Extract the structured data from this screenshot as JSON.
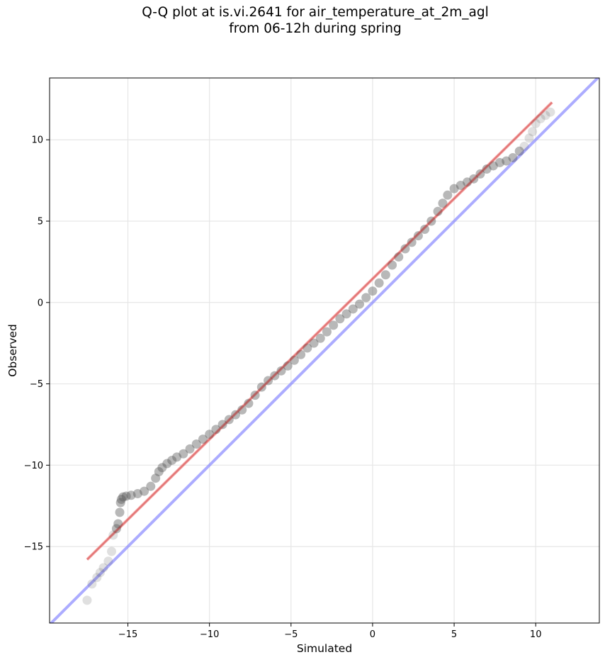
{
  "chart_data": {
    "type": "scatter",
    "title": [
      "Q-Q plot at is.vi.2641 for air_temperature_at_2m_agl",
      "from 06-12h during spring"
    ],
    "xlabel": "Simulated",
    "ylabel": "Observed",
    "xlim": [
      -19.8,
      13.9
    ],
    "ylim": [
      -19.7,
      13.8
    ],
    "xticks": [
      -15,
      -10,
      -5,
      0,
      5,
      10
    ],
    "yticks": [
      -15,
      -10,
      -5,
      0,
      5,
      10
    ],
    "xticklabels": [
      "−15",
      "−10",
      "−5",
      "0",
      "5",
      "10"
    ],
    "yticklabels": [
      "−15",
      "−10",
      "−5",
      "0",
      "5",
      "10"
    ],
    "grid": true,
    "colors": {
      "points": "#555555",
      "fit_line": "#f08080",
      "identity_line": "#8080ff",
      "grid": "#e6e6e6"
    },
    "series": [
      {
        "kind": "quantile_points",
        "x": [
          -17.5,
          -17.2,
          -16.9,
          -16.7,
          -16.5,
          -16.2,
          -16.0,
          -15.9,
          -15.7,
          -15.6,
          -15.5,
          -15.45,
          -15.4,
          -15.3,
          -15.1,
          -14.8,
          -14.4,
          -14.0,
          -13.6,
          -13.3,
          -13.1,
          -12.9,
          -12.6,
          -12.3,
          -12.0,
          -11.6,
          -11.2,
          -10.8,
          -10.4,
          -10.0,
          -9.6,
          -9.2,
          -8.8,
          -8.4,
          -8.0,
          -7.6,
          -7.2,
          -6.8,
          -6.4,
          -6.0,
          -5.6,
          -5.2,
          -4.8,
          -4.4,
          -4.0,
          -3.6,
          -3.2,
          -2.8,
          -2.4,
          -2.0,
          -1.6,
          -1.2,
          -0.8,
          -0.4,
          0.0,
          0.4,
          0.8,
          1.2,
          1.6,
          2.0,
          2.4,
          2.8,
          3.2,
          3.6,
          4.0,
          4.3,
          4.6,
          5.0,
          5.4,
          5.8,
          6.2,
          6.6,
          7.0,
          7.4,
          7.8,
          8.2,
          8.6,
          9.0,
          9.3,
          9.6,
          9.8,
          10.0,
          10.3,
          10.6,
          10.9
        ],
        "y": [
          -18.3,
          -17.3,
          -16.9,
          -16.6,
          -16.3,
          -15.9,
          -15.3,
          -14.3,
          -13.9,
          -13.6,
          -12.9,
          -12.3,
          -12.1,
          -11.95,
          -11.9,
          -11.85,
          -11.75,
          -11.6,
          -11.3,
          -10.8,
          -10.4,
          -10.15,
          -9.9,
          -9.7,
          -9.5,
          -9.3,
          -9.0,
          -8.7,
          -8.4,
          -8.1,
          -7.8,
          -7.5,
          -7.2,
          -6.9,
          -6.6,
          -6.2,
          -5.7,
          -5.2,
          -4.8,
          -4.5,
          -4.2,
          -3.9,
          -3.55,
          -3.2,
          -2.8,
          -2.5,
          -2.2,
          -1.8,
          -1.4,
          -1.0,
          -0.7,
          -0.4,
          -0.1,
          0.3,
          0.7,
          1.2,
          1.7,
          2.3,
          2.8,
          3.3,
          3.7,
          4.1,
          4.5,
          5.0,
          5.6,
          6.1,
          6.6,
          7.0,
          7.2,
          7.4,
          7.6,
          7.9,
          8.2,
          8.4,
          8.6,
          8.7,
          8.9,
          9.3,
          9.6,
          10.1,
          10.5,
          11.0,
          11.3,
          11.5,
          11.7
        ],
        "color": "#555555"
      },
      {
        "kind": "fit_line",
        "x": [
          -17.5,
          11.0
        ],
        "y": [
          -15.8,
          12.3
        ],
        "color": "#f08080"
      },
      {
        "kind": "identity_line",
        "x": [
          -19.8,
          13.9
        ],
        "y": [
          -19.8,
          13.9
        ],
        "color": "#8080ff"
      }
    ]
  }
}
